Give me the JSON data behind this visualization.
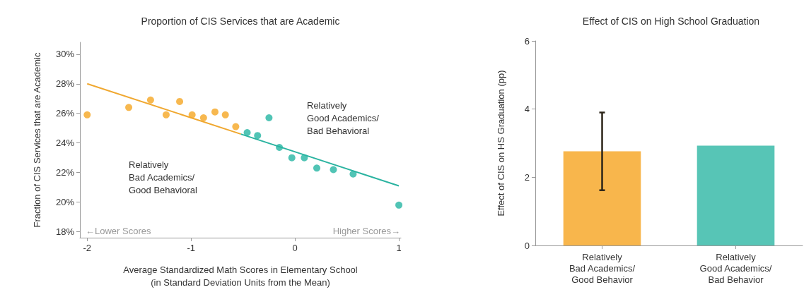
{
  "chart_data": [
    {
      "type": "scatter",
      "title": "Proportion of CIS Services that are Academic",
      "xlabel": "Average Standardized Math Scores in Elementary School\n(in Standard Deviation Units from the Mean)",
      "ylabel": "Fraction of CIS Services that are Academic",
      "xlim": [
        -2.07,
        1.02
      ],
      "xticks": [
        -2,
        -1,
        0,
        1
      ],
      "ylim": [
        17.6,
        30.8
      ],
      "yticks": [
        {
          "value": 18,
          "label": "18%"
        },
        {
          "value": 20,
          "label": "20%"
        },
        {
          "value": 22,
          "label": "22%"
        },
        {
          "value": 24,
          "label": "24%"
        },
        {
          "value": 26,
          "label": "26%"
        },
        {
          "value": 28,
          "label": "28%"
        },
        {
          "value": 30,
          "label": "30%"
        }
      ],
      "grid": false,
      "series": [
        {
          "type": "scatter",
          "marker": "circle",
          "color": "#f5a623",
          "x": [
            -2.0,
            -1.6,
            -1.39,
            -1.24,
            -1.11,
            -0.99,
            -0.88,
            -0.77,
            -0.67,
            -0.57
          ],
          "values": [
            25.9,
            26.4,
            26.9,
            25.9,
            26.8,
            25.9,
            25.7,
            26.1,
            25.9,
            25.1
          ]
        },
        {
          "type": "scatter",
          "marker": "circle",
          "color": "#26b5a2",
          "x": [
            -0.46,
            -0.36,
            -0.25,
            -0.15,
            -0.03,
            0.09,
            0.21,
            0.37,
            0.56,
            1.0
          ],
          "values": [
            24.7,
            24.5,
            25.7,
            23.7,
            23.0,
            23.0,
            22.3,
            22.2,
            21.9,
            19.8
          ]
        },
        {
          "type": "line",
          "marker": "none",
          "color": "#f0a830",
          "x": [
            -2.0,
            -0.52
          ],
          "values": [
            28.0,
            24.6
          ]
        },
        {
          "type": "line",
          "marker": "none",
          "color": "#2ab3a0",
          "x": [
            -0.52,
            1.0
          ],
          "values": [
            24.6,
            21.1
          ]
        }
      ],
      "annotations": [
        "Relatively\nGood Academics/\nBad Behavioral",
        "Relatively\nBad Academics/\nGood Behavioral",
        "←Lower Scores",
        "Higher Scores→"
      ]
    },
    {
      "type": "bar",
      "title": "Effect of CIS on High School Graduation",
      "ylabel": "Effect of CIS on HS Graduation (pp)",
      "categories": [
        "Relatively\nBad Academics/\nGood Behavior",
        "Relatively\nGood Academics/\nBad Behavior"
      ],
      "values": [
        2.76,
        2.93
      ],
      "colors": [
        "#f8b64c",
        "#57c5b6"
      ],
      "errors": [
        [
          1.62,
          3.9
        ],
        null
      ],
      "ylim": [
        0,
        6
      ],
      "yticks": [
        0,
        2,
        4,
        6
      ],
      "grid": false
    }
  ]
}
